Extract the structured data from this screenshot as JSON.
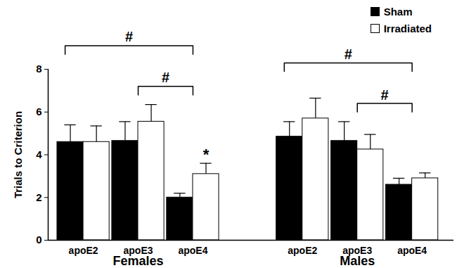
{
  "chart_data": {
    "type": "bar",
    "y_label": "Trials to Criterion",
    "categories": [
      "apoE2",
      "apoE3",
      "apoE4",
      "apoE2",
      "apoE3",
      "apoE4"
    ],
    "groups": [
      "Females",
      "Females",
      "Females",
      "Males",
      "Males",
      "Males"
    ],
    "series": [
      {
        "name": "Sham",
        "color": "#000000",
        "values": [
          4.6,
          4.65,
          2.0,
          4.85,
          4.65,
          2.6
        ],
        "errors": [
          0.8,
          0.9,
          0.2,
          0.7,
          0.9,
          0.3
        ]
      },
      {
        "name": "Irradiated",
        "color": "#ffffff",
        "values": [
          4.6,
          5.55,
          3.1,
          5.7,
          4.25,
          2.9
        ],
        "errors": [
          0.75,
          0.8,
          0.5,
          0.95,
          0.7,
          0.25
        ]
      }
    ],
    "comparisons": [
      {
        "group": "Females",
        "from": "apoE2",
        "to": "apoE4",
        "label": "#"
      },
      {
        "group": "Females",
        "from": "apoE3",
        "to": "apoE4",
        "label": "#"
      },
      {
        "group": "Males",
        "from": "apoE2",
        "to": "apoE4",
        "label": "#"
      },
      {
        "group": "Males",
        "from": "apoE3",
        "to": "apoE4",
        "label": "#"
      }
    ],
    "markers": [
      {
        "group": "Females",
        "category": "apoE4",
        "series": "Irradiated",
        "label": "*"
      }
    ],
    "ylim": [
      0,
      8
    ],
    "yticks": [
      0,
      2,
      4,
      6,
      8
    ],
    "legend": "top-right"
  }
}
